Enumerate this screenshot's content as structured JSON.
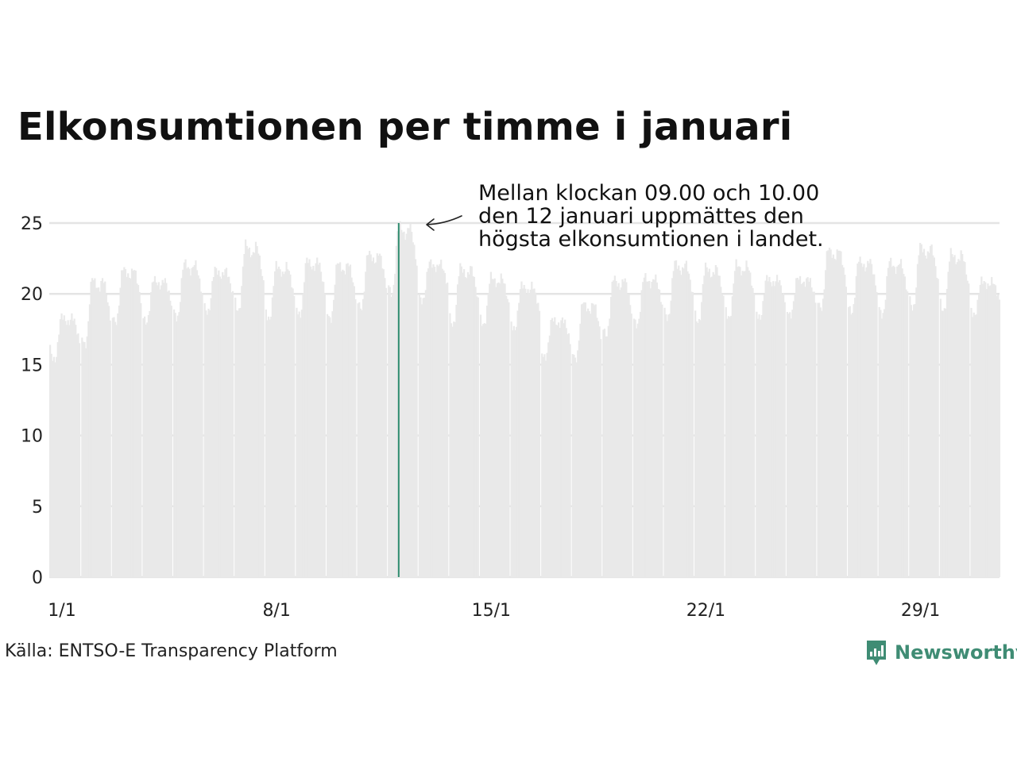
{
  "header": {
    "title": "Elkonsumtionen per timme i januari"
  },
  "annotation": {
    "lines": [
      "Mellan klockan 09.00 och 10.00",
      "den 12 januari uppmättes den",
      "högsta elkonsumtionen i landet."
    ]
  },
  "footer": {
    "source": "Källa: ENTSO-E Transparency Platform",
    "brand": "Newsworthy"
  },
  "colors": {
    "bars": "#e9e9e9",
    "highlight": "#2e8b6e",
    "grid": "#e4e4e4",
    "brand": "#3f8c74"
  },
  "chart_data": {
    "type": "area",
    "x_unit": "day of January",
    "xlim": [
      1,
      31.99
    ],
    "ylim": [
      0,
      25
    ],
    "yticks": [
      "0",
      "5",
      "10",
      "15",
      "20",
      "25"
    ],
    "xticks": [
      {
        "day": 1,
        "label": "1/1"
      },
      {
        "day": 8,
        "label": "8/1"
      },
      {
        "day": 15,
        "label": "15/1"
      },
      {
        "day": 22,
        "label": "22/1"
      },
      {
        "day": 29,
        "label": "29/1"
      }
    ],
    "grid": true,
    "hourly_profile": [
      0.7,
      0.64,
      0.6,
      0.58,
      0.58,
      0.62,
      0.72,
      0.85,
      0.95,
      1.0,
      0.99,
      0.97,
      0.95,
      0.93,
      0.92,
      0.93,
      0.96,
      0.99,
      0.98,
      0.95,
      0.9,
      0.85,
      0.8,
      0.75
    ],
    "daily_peaks": [
      {
        "day": 1,
        "low": 15.3,
        "peak": 18.5
      },
      {
        "day": 2,
        "low": 16.4,
        "peak": 21.2
      },
      {
        "day": 3,
        "low": 18.0,
        "peak": 21.9
      },
      {
        "day": 4,
        "low": 18.0,
        "peak": 21.1
      },
      {
        "day": 5,
        "low": 18.3,
        "peak": 22.3
      },
      {
        "day": 6,
        "low": 18.7,
        "peak": 21.8
      },
      {
        "day": 7,
        "low": 18.8,
        "peak": 23.6
      },
      {
        "day": 8,
        "low": 18.2,
        "peak": 22.1
      },
      {
        "day": 9,
        "low": 18.5,
        "peak": 22.5
      },
      {
        "day": 10,
        "low": 18.2,
        "peak": 22.3
      },
      {
        "day": 11,
        "low": 19.0,
        "peak": 23.0
      },
      {
        "day": 12,
        "low": 20.0,
        "peak": 25.0
      },
      {
        "day": 13,
        "low": 19.5,
        "peak": 22.3
      },
      {
        "day": 14,
        "low": 17.8,
        "peak": 22.0
      },
      {
        "day": 15,
        "low": 17.8,
        "peak": 21.3
      },
      {
        "day": 16,
        "low": 17.5,
        "peak": 20.7
      },
      {
        "day": 17,
        "low": 15.5,
        "peak": 18.3
      },
      {
        "day": 18,
        "low": 15.4,
        "peak": 19.5
      },
      {
        "day": 19,
        "low": 17.1,
        "peak": 21.2
      },
      {
        "day": 20,
        "low": 17.8,
        "peak": 21.3
      },
      {
        "day": 21,
        "low": 18.3,
        "peak": 22.3
      },
      {
        "day": 22,
        "low": 18.0,
        "peak": 22.0
      },
      {
        "day": 23,
        "low": 18.3,
        "peak": 22.2
      },
      {
        "day": 24,
        "low": 18.3,
        "peak": 21.2
      },
      {
        "day": 25,
        "low": 18.5,
        "peak": 21.2
      },
      {
        "day": 26,
        "low": 19.0,
        "peak": 23.3
      },
      {
        "day": 27,
        "low": 18.7,
        "peak": 22.5
      },
      {
        "day": 28,
        "low": 18.5,
        "peak": 22.4
      },
      {
        "day": 29,
        "low": 19.0,
        "peak": 23.5
      },
      {
        "day": 30,
        "low": 18.8,
        "peak": 23.0
      },
      {
        "day": 31,
        "low": 18.5,
        "peak": 21.0
      }
    ],
    "highlight": {
      "day": 12,
      "hour": 9,
      "value": 25.0
    }
  }
}
